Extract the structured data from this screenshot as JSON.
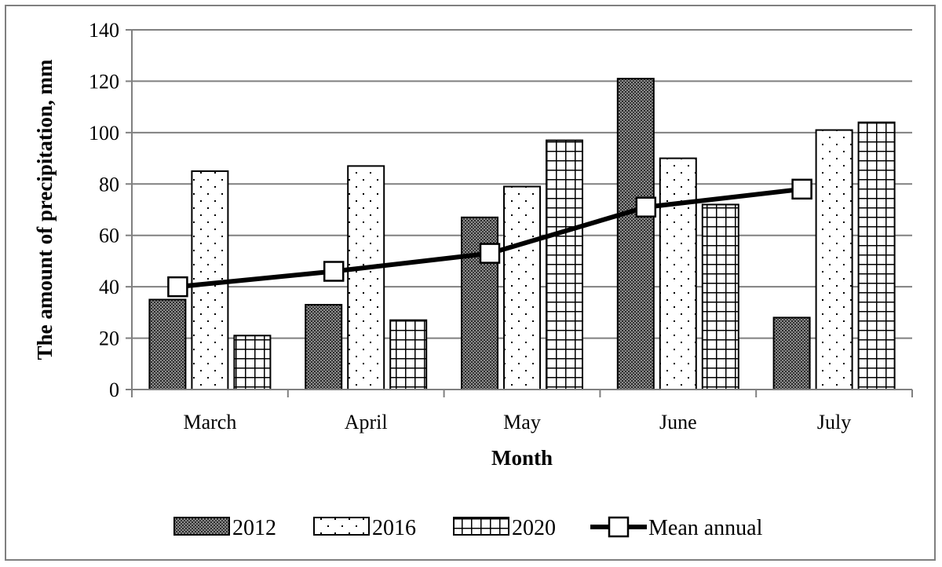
{
  "chart_data": {
    "type": "bar",
    "xlabel": "Month",
    "ylabel": "The amount of precipitation, mm",
    "ylim": [
      0,
      140
    ],
    "yticks": [
      0,
      20,
      40,
      60,
      80,
      100,
      120,
      140
    ],
    "grid": true,
    "legend_position": "bottom",
    "categories": [
      "March",
      "April",
      "May",
      "June",
      "July"
    ],
    "series": [
      {
        "name": "2012",
        "type": "bar",
        "pattern": "dense-dots",
        "values": [
          35,
          33,
          67,
          121,
          28
        ]
      },
      {
        "name": "2016",
        "type": "bar",
        "pattern": "sparse-dots",
        "values": [
          85,
          87,
          79,
          90,
          101
        ]
      },
      {
        "name": "2020",
        "type": "bar",
        "pattern": "grid",
        "values": [
          21,
          27,
          97,
          72,
          104
        ]
      },
      {
        "name": "Mean annual",
        "type": "line",
        "marker": "square",
        "values": [
          40,
          46,
          53,
          71,
          78
        ]
      }
    ],
    "colors": {
      "line": "#000000",
      "grid": "#808080",
      "frame": "#7f7f7f"
    }
  }
}
